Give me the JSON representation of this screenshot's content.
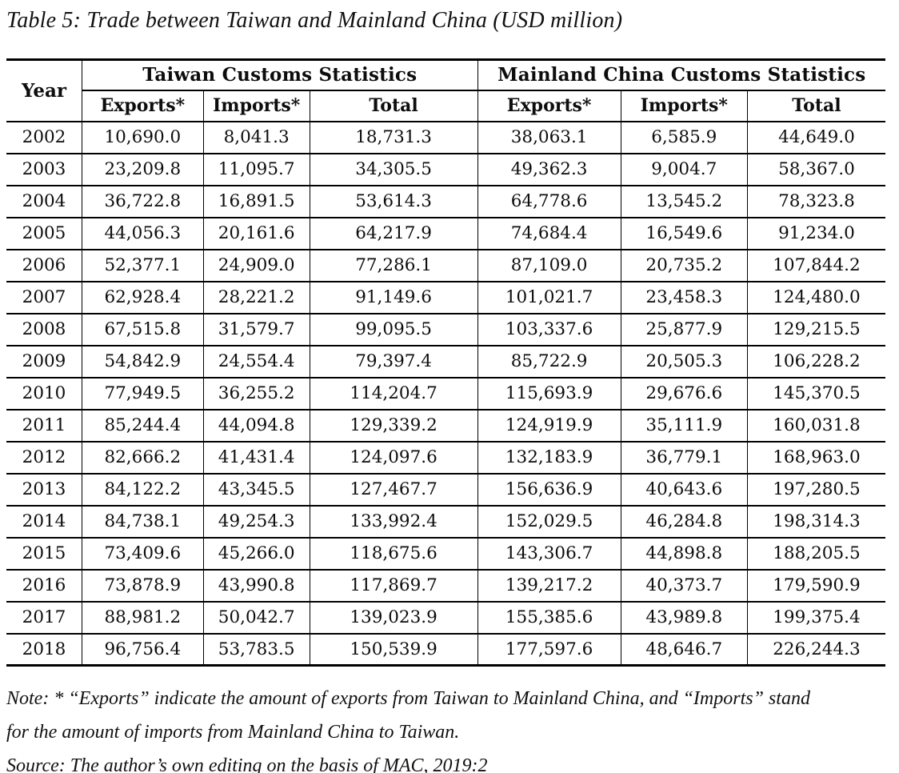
{
  "title": "Table 5: Trade between Taiwan and Mainland China (USD million)",
  "table": {
    "col_year": "Year",
    "sections": [
      {
        "label": "Taiwan Customs Statistics"
      },
      {
        "label": "Mainland China Customs Statistics"
      }
    ],
    "sub_headers": [
      "Exports*",
      "Imports*",
      "Total",
      "Exports*",
      "Imports*",
      "Total"
    ],
    "rows": [
      {
        "year": "2002",
        "values": [
          "10,690.0",
          "8,041.3",
          "18,731.3",
          "38,063.1",
          "6,585.9",
          "44,649.0"
        ]
      },
      {
        "year": "2003",
        "values": [
          "23,209.8",
          "11,095.7",
          "34,305.5",
          "49,362.3",
          "9,004.7",
          "58,367.0"
        ]
      },
      {
        "year": "2004",
        "values": [
          "36,722.8",
          "16,891.5",
          "53,614.3",
          "64,778.6",
          "13,545.2",
          "78,323.8"
        ]
      },
      {
        "year": "2005",
        "values": [
          "44,056.3",
          "20,161.6",
          "64,217.9",
          "74,684.4",
          "16,549.6",
          "91,234.0"
        ]
      },
      {
        "year": "2006",
        "values": [
          "52,377.1",
          "24,909.0",
          "77,286.1",
          "87,109.0",
          "20,735.2",
          "107,844.2"
        ]
      },
      {
        "year": "2007",
        "values": [
          "62,928.4",
          "28,221.2",
          "91,149.6",
          "101,021.7",
          "23,458.3",
          "124,480.0"
        ]
      },
      {
        "year": "2008",
        "values": [
          "67,515.8",
          "31,579.7",
          "99,095.5",
          "103,337.6",
          "25,877.9",
          "129,215.5"
        ]
      },
      {
        "year": "2009",
        "values": [
          "54,842.9",
          "24,554.4",
          "79,397.4",
          "85,722.9",
          "20,505.3",
          "106,228.2"
        ]
      },
      {
        "year": "2010",
        "values": [
          "77,949.5",
          "36,255.2",
          "114,204.7",
          "115,693.9",
          "29,676.6",
          "145,370.5"
        ]
      },
      {
        "year": "2011",
        "values": [
          "85,244.4",
          "44,094.8",
          "129,339.2",
          "124,919.9",
          "35,111.9",
          "160,031.8"
        ]
      },
      {
        "year": "2012",
        "values": [
          "82,666.2",
          "41,431.4",
          "124,097.6",
          "132,183.9",
          "36,779.1",
          "168,963.0"
        ]
      },
      {
        "year": "2013",
        "values": [
          "84,122.2",
          "43,345.5",
          "127,467.7",
          "156,636.9",
          "40,643.6",
          "197,280.5"
        ]
      },
      {
        "year": "2014",
        "values": [
          "84,738.1",
          "49,254.3",
          "133,992.4",
          "152,029.5",
          "46,284.8",
          "198,314.3"
        ]
      },
      {
        "year": "2015",
        "values": [
          "73,409.6",
          "45,266.0",
          "118,675.6",
          "143,306.7",
          "44,898.8",
          "188,205.5"
        ]
      },
      {
        "year": "2016",
        "values": [
          "73,878.9",
          "43,990.8",
          "117,869.7",
          "139,217.2",
          "40,373.7",
          "179,590.9"
        ]
      },
      {
        "year": "2017",
        "values": [
          "88,981.2",
          "50,042.7",
          "139,023.9",
          "155,385.6",
          "43,989.8",
          "199,375.4"
        ]
      },
      {
        "year": "2018",
        "values": [
          "96,756.4",
          "53,783.5",
          "150,539.9",
          "177,597.6",
          "48,646.7",
          "226,244.3"
        ]
      }
    ]
  },
  "note": {
    "line1": "Note: * “Exports” indicate the amount of exports from Taiwan to Mainland China, and “Imports” stand",
    "line2": "for the amount of imports from Mainland China to Taiwan."
  },
  "source": "Source: The author’s own editing on the basis of MAC, 2019:2"
}
